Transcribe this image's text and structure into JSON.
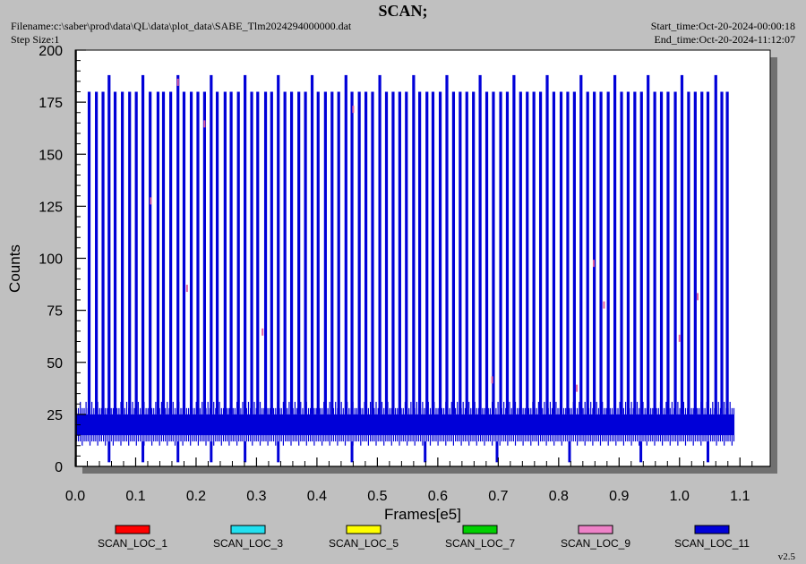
{
  "header": {
    "title": "SCAN;",
    "filename": "Filename:c:\\saber\\prod\\data\\QL\\data\\plot_data\\SABE_Tlm2024294000000.dat",
    "step_size": "Step Size:1",
    "start_time": "Start_time:Oct-20-2024-00:00:18",
    "end_time": "End_time:Oct-20-2024-11:12:07"
  },
  "version": "v2.5",
  "colors": {
    "background": "#c0c0c0",
    "plot_background": "#ffffff",
    "shadow": "#707070",
    "series_fill": "#0000d8"
  },
  "chart_data": {
    "type": "line",
    "title": "SCAN;",
    "xlabel": "Frames[e5]",
    "ylabel": "Counts",
    "xlim": [
      0.0,
      1.15
    ],
    "ylim": [
      0,
      200
    ],
    "xticks": [
      "0.0",
      "0.1",
      "0.2",
      "0.3",
      "0.4",
      "0.5",
      "0.6",
      "0.7",
      "0.8",
      "0.9",
      "1.0",
      "1.1"
    ],
    "yticks": [
      "0",
      "25",
      "50",
      "75",
      "100",
      "125",
      "150",
      "175",
      "200"
    ],
    "grid": false,
    "legend_position": "bottom",
    "x_data_end": 1.09,
    "series": [
      {
        "name": "SCAN_LOC_1",
        "color": "#ff0000",
        "typical_range": [
          15,
          25
        ],
        "peak": 180
      },
      {
        "name": "SCAN_LOC_3",
        "color": "#22e0f0",
        "typical_range": [
          15,
          25
        ],
        "peak": 180
      },
      {
        "name": "SCAN_LOC_5",
        "color": "#ffff00",
        "typical_range": [
          15,
          25
        ],
        "peak": 180
      },
      {
        "name": "SCAN_LOC_7",
        "color": "#00d000",
        "typical_range": [
          15,
          25
        ],
        "peak": 180
      },
      {
        "name": "SCAN_LOC_9",
        "color": "#ee82c8",
        "typical_range": [
          15,
          25
        ],
        "peak": 180
      },
      {
        "name": "SCAN_LOC_11",
        "color": "#0000d8",
        "typical_range": [
          10,
          31
        ],
        "peak": 188
      }
    ],
    "spike_x": [
      0.023,
      0.035,
      0.046,
      0.056,
      0.066,
      0.078,
      0.09,
      0.101,
      0.112,
      0.124,
      0.137,
      0.146,
      0.158,
      0.17,
      0.18,
      0.192,
      0.203,
      0.214,
      0.225,
      0.235,
      0.248,
      0.258,
      0.27,
      0.281,
      0.292,
      0.302,
      0.315,
      0.325,
      0.336,
      0.347,
      0.358,
      0.37,
      0.381,
      0.392,
      0.402,
      0.414,
      0.425,
      0.436,
      0.448,
      0.458,
      0.47,
      0.481,
      0.492,
      0.504,
      0.515,
      0.526,
      0.537,
      0.548,
      0.56,
      0.57,
      0.582,
      0.592,
      0.604,
      0.615,
      0.626,
      0.637,
      0.648,
      0.659,
      0.67,
      0.681,
      0.692,
      0.704,
      0.715,
      0.726,
      0.737,
      0.748,
      0.759,
      0.77,
      0.781,
      0.792,
      0.804,
      0.815,
      0.826,
      0.837,
      0.848,
      0.859,
      0.87,
      0.882,
      0.893,
      0.904,
      0.915,
      0.926,
      0.937,
      0.948,
      0.959,
      0.97,
      0.981,
      0.993,
      1.004,
      1.015,
      1.026,
      1.037,
      1.047,
      1.06,
      1.07,
      1.079
    ],
    "tall_spike_x": [
      0.056,
      0.112,
      0.17,
      0.225,
      0.281,
      0.336,
      0.392,
      0.448,
      0.504,
      0.56,
      0.615,
      0.67,
      0.726,
      0.781,
      0.837,
      0.893,
      0.948,
      1.004,
      1.06
    ],
    "dip_x": [
      0.056,
      0.112,
      0.17,
      0.225,
      0.281,
      0.336,
      0.458,
      0.579,
      0.698,
      0.818,
      0.936,
      1.047
    ],
    "marker_points": [
      {
        "x": 0.125,
        "y": 128
      },
      {
        "x": 0.17,
        "y": 185
      },
      {
        "x": 0.185,
        "y": 86
      },
      {
        "x": 0.214,
        "y": 165
      },
      {
        "x": 0.31,
        "y": 65
      },
      {
        "x": 0.46,
        "y": 172
      },
      {
        "x": 0.69,
        "y": 42
      },
      {
        "x": 0.83,
        "y": 38
      },
      {
        "x": 0.858,
        "y": 98
      },
      {
        "x": 0.875,
        "y": 78
      },
      {
        "x": 1.0,
        "y": 62
      },
      {
        "x": 1.03,
        "y": 82
      }
    ]
  }
}
